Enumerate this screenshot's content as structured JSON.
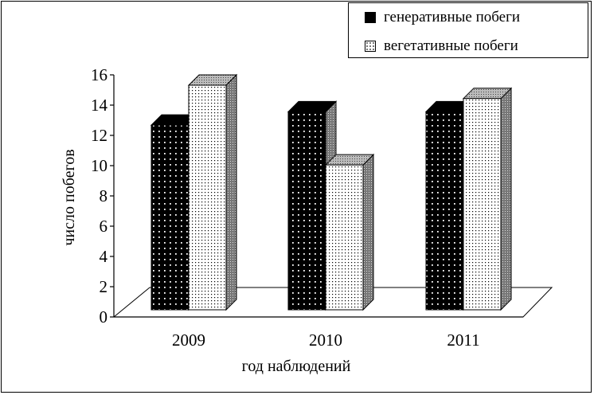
{
  "chart_data": {
    "type": "bar",
    "categories": [
      "2009",
      "2010",
      "2011"
    ],
    "series": [
      {
        "name": "генеративные побеги",
        "values": [
          13,
          14,
          14
        ]
      },
      {
        "name": "вегетативные побеги",
        "values": [
          16,
          10,
          15
        ]
      }
    ],
    "xlabel": "год наблюдений",
    "ylabel": "число побегов",
    "ylim": [
      0,
      16
    ],
    "yticks": [
      0,
      2,
      4,
      6,
      8,
      10,
      12,
      14,
      16
    ],
    "legend_position": "top-right",
    "grid": false,
    "colors": {
      "series_0": "#000000",
      "series_1": "#ffffff",
      "side": "#808080",
      "top": "#c0c0c0"
    }
  }
}
